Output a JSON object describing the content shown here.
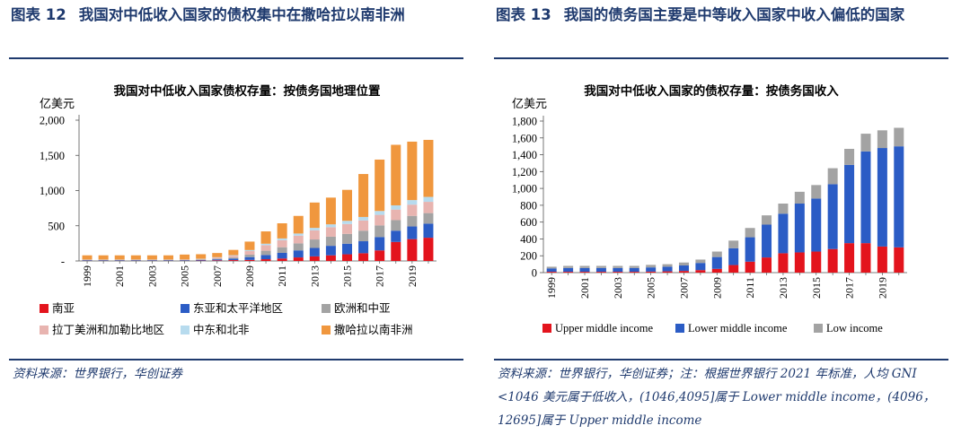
{
  "left": {
    "figure_number": "图表 12",
    "figure_title": "我国对中低收入国家的债权集中在撒哈拉以南非洲",
    "source": "资料来源：世界银行，华创证券"
  },
  "right": {
    "figure_number": "图表 13",
    "figure_title": "我国的债务国主要是中等收入国家中收入偏低的国家",
    "source": "资料来源：世界银行，华创证券；注：根据世界银行 2021 年标准，人均 GNI <1046 美元属于低收入，(1046,4095]属于 Lower middle income，(4096，12695]属于 Upper middle income"
  },
  "colors": {
    "header_blue": "#1f3a6e",
    "red": "#e3141d",
    "blue": "#2b5cc5",
    "gray": "#a3a3a3",
    "pink": "#e8b4b0",
    "lightblue": "#b7dbee",
    "orange": "#f0973e"
  },
  "chart_data": [
    {
      "type": "bar",
      "stacked": true,
      "title": "我国对中低收入国家债权存量：按债务国地理位置",
      "ylabel": "亿美元",
      "ylim": [
        0,
        2000
      ],
      "yticks": [
        0,
        500,
        1000,
        1500,
        2000
      ],
      "ytick_labels": [
        "-",
        "500",
        "1,000",
        "1,500",
        "2,000"
      ],
      "categories": [
        "1999",
        "2000",
        "2001",
        "2002",
        "2003",
        "2004",
        "2005",
        "2006",
        "2007",
        "2008",
        "2009",
        "2010",
        "2011",
        "2012",
        "2013",
        "2014",
        "2015",
        "2016",
        "2017",
        "2018",
        "2019",
        "2020"
      ],
      "xtick_labels": [
        "1999",
        "2001",
        "2003",
        "2005",
        "2007",
        "2009",
        "2011",
        "2013",
        "2015",
        "2017",
        "2019"
      ],
      "legend_position": "bottom",
      "series": [
        {
          "name": "南亚",
          "color": "#e3141d",
          "values": [
            3,
            3,
            3,
            3,
            3,
            3,
            3,
            5,
            8,
            12,
            15,
            25,
            35,
            50,
            65,
            80,
            95,
            110,
            150,
            270,
            310,
            330
          ]
        },
        {
          "name": "东亚和太平洋地区",
          "color": "#2b5cc5",
          "values": [
            8,
            8,
            8,
            8,
            8,
            8,
            8,
            10,
            15,
            22,
            40,
            60,
            80,
            100,
            120,
            135,
            150,
            170,
            190,
            160,
            180,
            200
          ]
        },
        {
          "name": "欧洲和中亚",
          "color": "#a3a3a3",
          "values": [
            5,
            5,
            5,
            5,
            5,
            5,
            5,
            8,
            10,
            15,
            35,
            60,
            80,
            100,
            120,
            130,
            140,
            150,
            165,
            150,
            150,
            150
          ]
        },
        {
          "name": "拉丁美洲和加勒比地区",
          "color": "#e8b4b0",
          "values": [
            2,
            2,
            2,
            2,
            2,
            2,
            3,
            5,
            15,
            25,
            50,
            80,
            100,
            110,
            130,
            135,
            140,
            145,
            150,
            150,
            160,
            160
          ]
        },
        {
          "name": "中东和北非",
          "color": "#b7dbee",
          "values": [
            2,
            2,
            2,
            2,
            2,
            2,
            2,
            3,
            5,
            8,
            15,
            20,
            25,
            30,
            35,
            40,
            45,
            50,
            55,
            60,
            65,
            70
          ]
        },
        {
          "name": "撒哈拉以南非洲",
          "color": "#f0973e",
          "values": [
            60,
            60,
            60,
            60,
            60,
            60,
            70,
            65,
            60,
            75,
            120,
            175,
            215,
            250,
            360,
            380,
            440,
            610,
            730,
            860,
            830,
            810
          ]
        }
      ]
    },
    {
      "type": "bar",
      "stacked": true,
      "title": "我国对中低收入国家的债权存量：按债务国收入",
      "ylabel": "亿美元",
      "ylim": [
        0,
        1800
      ],
      "yticks": [
        0,
        200,
        400,
        600,
        800,
        1000,
        1200,
        1400,
        1600,
        1800
      ],
      "ytick_labels": [
        "0",
        "200",
        "400",
        "600",
        "800",
        "1,000",
        "1,200",
        "1,400",
        "1,600",
        "1,800"
      ],
      "categories": [
        "1999",
        "2000",
        "2001",
        "2002",
        "2003",
        "2004",
        "2005",
        "2006",
        "2007",
        "2008",
        "2009",
        "2010",
        "2011",
        "2012",
        "2013",
        "2014",
        "2015",
        "2016",
        "2017",
        "2018",
        "2019",
        "2020"
      ],
      "xtick_labels": [
        "1999",
        "2001",
        "2003",
        "2005",
        "2007",
        "2009",
        "2011",
        "2013",
        "2015",
        "2017",
        "2019"
      ],
      "legend_position": "bottom",
      "series": [
        {
          "name": "Upper middle income",
          "color": "#e3141d",
          "values": [
            10,
            10,
            10,
            10,
            10,
            10,
            12,
            15,
            20,
            30,
            45,
            90,
            130,
            180,
            230,
            240,
            250,
            280,
            350,
            350,
            310,
            300
          ]
        },
        {
          "name": "Lower middle income",
          "color": "#2b5cc5",
          "values": [
            40,
            45,
            45,
            45,
            45,
            45,
            50,
            55,
            65,
            85,
            140,
            200,
            290,
            390,
            470,
            580,
            630,
            770,
            930,
            1090,
            1170,
            1200
          ]
        },
        {
          "name": "Low income",
          "color": "#a3a3a3",
          "values": [
            20,
            25,
            25,
            25,
            25,
            25,
            30,
            30,
            35,
            40,
            65,
            90,
            110,
            110,
            120,
            140,
            160,
            190,
            190,
            210,
            210,
            220
          ]
        }
      ]
    }
  ]
}
